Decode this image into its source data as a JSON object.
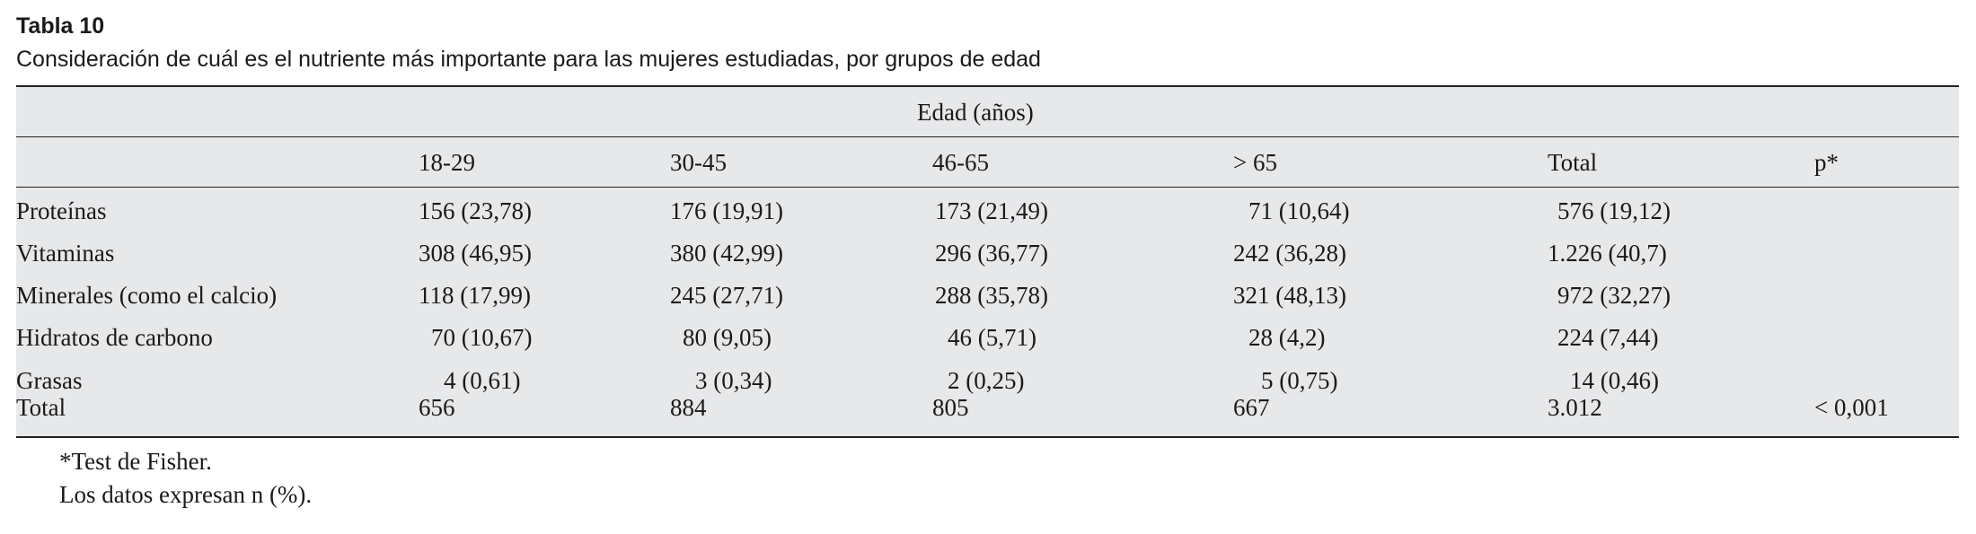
{
  "title": "Tabla 10",
  "caption": "Consideración de cuál es el nutriente más importante para las mujeres estudiadas, por grupos de edad",
  "table": {
    "spanner": "Edad (años)",
    "columns": [
      "18-29",
      "30-45",
      "46-65",
      "> 65",
      "Total",
      "p*"
    ],
    "rows": [
      {
        "label": "Proteínas",
        "cells": [
          "156 (23,78)",
          "176 (19,91)",
          "173 (21,49)",
          "71 (10,64)",
          "576 (19,12)",
          ""
        ]
      },
      {
        "label": "Vitaminas",
        "cells": [
          "308 (46,95)",
          "380 (42,99)",
          "296 (36,77)",
          "242 (36,28)",
          "1.226 (40,7)",
          ""
        ]
      },
      {
        "label": "Minerales (como el calcio)",
        "cells": [
          "118 (17,99)",
          "245 (27,71)",
          "288 (35,78)",
          "321 (48,13)",
          "972 (32,27)",
          ""
        ]
      },
      {
        "label": "Hidratos de carbono",
        "cells": [
          "70 (10,67)",
          "80 (9,05)",
          "46 (5,71)",
          "28 (4,2)",
          "224 (7,44)",
          ""
        ]
      },
      {
        "label": "Grasas",
        "cells": [
          "4 (0,61)",
          "3 (0,34)",
          "2 (0,25)",
          "5 (0,75)",
          "14 (0,46)",
          ""
        ]
      },
      {
        "label": "Total",
        "cells": [
          "656",
          "884",
          "805",
          "667",
          "3.012",
          "< 0,001"
        ]
      }
    ]
  },
  "footnotes": [
    "*Test de Fisher.",
    "Los datos expresan n (%)."
  ]
}
